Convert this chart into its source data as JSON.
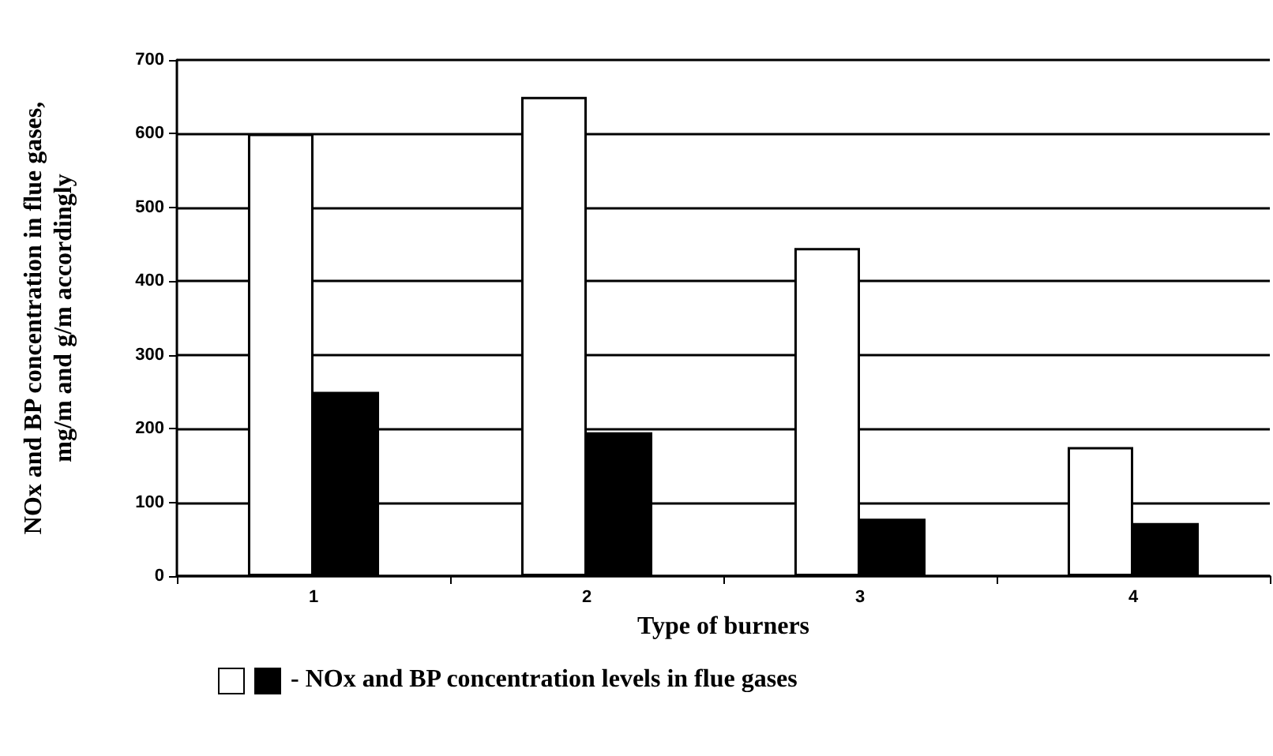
{
  "chart_data": {
    "type": "bar",
    "xlabel": "Type of burners",
    "ylabel": "NOx and BP concentration in flue gases,\nmg/m and g/m accordingly",
    "categories": [
      "1",
      "2",
      "3",
      "4"
    ],
    "series": [
      {
        "color": "#ffffff",
        "values": [
          600,
          650,
          445,
          175
        ]
      },
      {
        "color": "#000000",
        "values": [
          250,
          195,
          78,
          72
        ]
      }
    ],
    "ylim": [
      0,
      700
    ],
    "yticks": [
      0,
      100,
      200,
      300,
      400,
      500,
      600,
      700
    ],
    "grid": "y",
    "annotations": [
      "- NOx and BP concentration levels in flue gases"
    ]
  }
}
